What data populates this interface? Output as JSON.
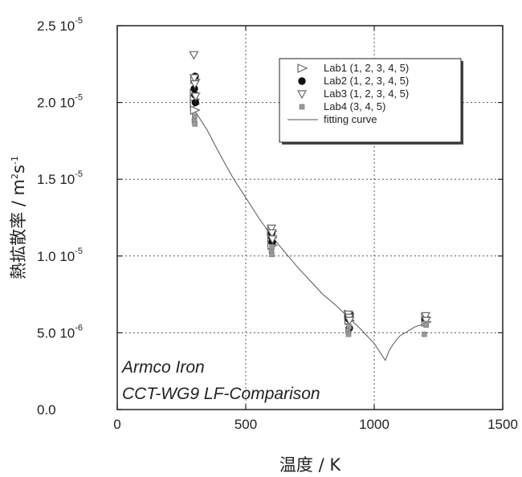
{
  "chart_data": {
    "type": "scatter",
    "xlabel": "温度 / K",
    "ylabel": "熱拡散率 / m²s⁻¹",
    "ylabel_parts": {
      "main": "熱拡散率 / m",
      "sup1": "2",
      "mid": "s",
      "sup2": "-1"
    },
    "xlim": [
      0,
      1500
    ],
    "ylim": [
      0,
      2.5e-05
    ],
    "x_ticks": [
      {
        "value": 0,
        "label": "0"
      },
      {
        "value": 500,
        "label": "500"
      },
      {
        "value": 1000,
        "label": "1000"
      },
      {
        "value": 1500,
        "label": "1500"
      }
    ],
    "y_ticks": [
      {
        "value": 0,
        "mant": "0.0",
        "exp": ""
      },
      {
        "value": 5e-06,
        "mant": "5.0 10",
        "exp": "-6"
      },
      {
        "value": 1e-05,
        "mant": "1.0 10",
        "exp": "-5"
      },
      {
        "value": 1.5e-05,
        "mant": "1.5 10",
        "exp": "-5"
      },
      {
        "value": 2e-05,
        "mant": "2.0 10",
        "exp": "-5"
      },
      {
        "value": 2.5e-05,
        "mant": "2.5 10",
        "exp": "-5"
      }
    ],
    "grid": true,
    "legend_position": "top-right",
    "annotations": [
      "Armco Iron",
      "CCT-WG9 LF-Comparison"
    ],
    "series": [
      {
        "name": "Lab1 (1, 2, 3, 4, 5)",
        "marker": "triangle-right-open",
        "color": "#666666",
        "x": [
          300,
          300,
          300,
          301,
          302,
          600,
          601,
          602,
          900,
          901,
          902,
          1200,
          1201
        ],
        "y": [
          2.06e-05,
          2.02e-05,
          1.99e-05,
          1.95e-05,
          2.15e-05,
          1.16e-05,
          1.12e-05,
          1.07e-05,
          6.2e-06,
          6e-06,
          5.8e-06,
          6e-06,
          5.7e-06
        ]
      },
      {
        "name": "Lab2 (1, 2, 3, 4, 5)",
        "marker": "circle-filled",
        "color": "#111111",
        "x": [
          300,
          302,
          303,
          304,
          601,
          602,
          603,
          899,
          901,
          903,
          906,
          1199
        ],
        "y": [
          2.09e-05,
          2.05e-05,
          2.17e-05,
          2e-05,
          1.15e-05,
          1.12e-05,
          1.09e-05,
          6.1e-06,
          5.9e-06,
          5.3e-06,
          6.2e-06,
          5.9e-06
        ]
      },
      {
        "name": "Lab3 (1, 2, 3, 4, 5)",
        "marker": "triangle-down-open",
        "color": "#666666",
        "x": [
          298,
          300,
          302,
          305,
          600,
          602,
          604,
          899,
          902,
          904,
          1200,
          1202
        ],
        "y": [
          2.31e-05,
          2.16e-05,
          2.12e-05,
          2.04e-05,
          1.18e-05,
          1.15e-05,
          1.11e-05,
          6.2e-06,
          6e-06,
          5.8e-06,
          6.1e-06,
          5.8e-06
        ]
      },
      {
        "name": "Lab4 (3, 4, 5)",
        "marker": "square-small",
        "color": "#999999",
        "x": [
          300,
          301,
          302,
          600,
          601,
          602,
          898,
          900,
          902,
          1195,
          1200,
          1202
        ],
        "y": [
          1.88e-05,
          1.91e-05,
          1.86e-05,
          1.03e-05,
          1.01e-05,
          1.06e-05,
          5.1e-06,
          4.9e-06,
          5.4e-06,
          4.9e-06,
          5.6e-06,
          5.5e-06
        ]
      }
    ],
    "fitting_curve": {
      "name": "fitting curve",
      "color": "#555555",
      "x": [
        300,
        350,
        400,
        450,
        500,
        550,
        600,
        650,
        700,
        750,
        800,
        850,
        900,
        950,
        1000,
        1043,
        1060,
        1080,
        1100,
        1130,
        1160,
        1200
      ],
      "y": [
        1.95e-05,
        1.82e-05,
        1.66e-05,
        1.51e-05,
        1.38e-05,
        1.25e-05,
        1.13e-05,
        1.03e-05,
        9.3e-06,
        8.4e-06,
        7.5e-06,
        6.8e-06,
        6e-06,
        5.2e-06,
        4.3e-06,
        3.2e-06,
        3.9e-06,
        4.4e-06,
        4.8e-06,
        5.1e-06,
        5.4e-06,
        5.6e-06
      ]
    }
  }
}
